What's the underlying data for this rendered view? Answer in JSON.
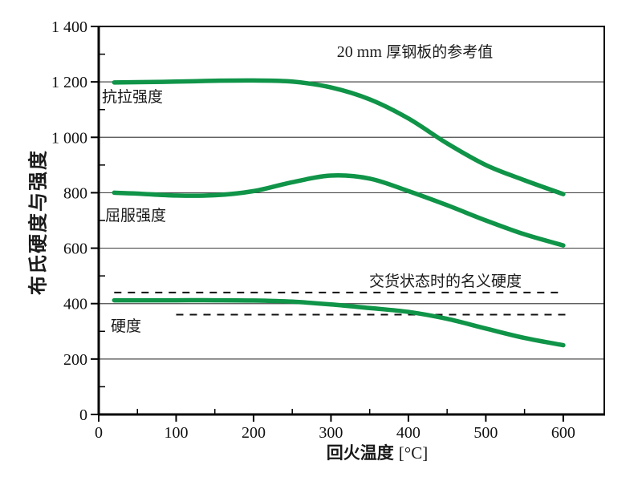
{
  "figure": {
    "annotation_num": "20 mm",
    "annotation_text": "厚钢板的参考值",
    "xlabel_cjk": "回火温度",
    "xlabel_unit": "[°C]",
    "ylabel": "布氏硬度与强度",
    "labels": {
      "tensile": "抗拉强度",
      "yield": "屈服强度",
      "hardness": "硬度",
      "nominal": "交货状态时的名义硬度"
    }
  },
  "chart_data": {
    "type": "line",
    "title": "",
    "annotation": "20 mm 厚钢板的参考值",
    "xlabel": "回火温度 [°C]",
    "ylabel": "布氏硬度与强度",
    "xlim": [
      0,
      653
    ],
    "ylim": [
      0,
      1400
    ],
    "x_ticks": [
      0,
      100,
      200,
      300,
      400,
      500,
      600
    ],
    "x_minor_ticks": [
      50,
      150,
      250,
      350,
      450,
      550
    ],
    "y_ticks": [
      0,
      200,
      400,
      600,
      800,
      1000,
      1200,
      1400
    ],
    "y_tick_labels": [
      "0",
      "200",
      "400",
      "600",
      "800",
      "1 000",
      "1 200",
      "1 400"
    ],
    "y_minor_ticks": [
      100,
      300,
      500,
      700,
      900,
      1100,
      1300
    ],
    "grid": "horizontal-only",
    "legend_position": "inline-curve-labels",
    "line_color": "#0f9448",
    "x": [
      20,
      50,
      100,
      150,
      200,
      250,
      300,
      350,
      400,
      450,
      500,
      550,
      600
    ],
    "series": [
      {
        "key": "tensile",
        "name": "抗拉强度",
        "values": [
          1198,
          1199,
          1201,
          1204,
          1205,
          1201,
          1180,
          1137,
          1068,
          978,
          900,
          845,
          795
        ]
      },
      {
        "key": "yield",
        "name": "屈服强度",
        "values": [
          800,
          797,
          790,
          791,
          806,
          838,
          862,
          851,
          806,
          755,
          700,
          650,
          610
        ]
      },
      {
        "key": "hardness",
        "name": "硬度",
        "values": [
          412,
          412,
          412,
          412,
          411,
          407,
          397,
          384,
          370,
          345,
          310,
          276,
          250
        ]
      }
    ],
    "reference_lines": [
      {
        "key": "nominal-upper",
        "label": "交货状态时的名义硬度",
        "value": 440,
        "x_start": 20,
        "x_end": 600,
        "style": "dashed"
      },
      {
        "key": "nominal-lower",
        "label": "交货状态时的名义硬度",
        "value": 360,
        "x_start": 100,
        "x_end": 605,
        "style": "dashed"
      }
    ]
  }
}
